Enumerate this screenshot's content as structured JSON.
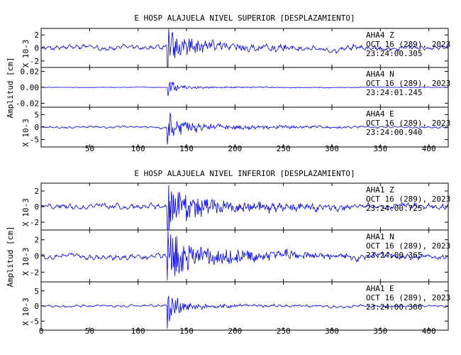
{
  "chart_data": [
    {
      "type": "line",
      "title": "E HOSP ALAJUELA NIVEL SUPERIOR [DESPLAZAMIENTO]",
      "ylabel": "Amplitud [cm]",
      "xlim": [
        0,
        420
      ],
      "x_ticks": [
        "50",
        "100",
        "150",
        "200",
        "250",
        "300",
        "350",
        "400"
      ],
      "trace_color": "#0000ff",
      "panels": [
        {
          "station": "AHA4",
          "component": "Z",
          "date": "OCT 16 (289), 2023",
          "time": "23:24:00.305",
          "scale_label": "X 10-3",
          "ylim": [
            -3,
            3
          ],
          "y_ticks": [
            "2",
            "0",
            "-2"
          ],
          "noise": 0.5,
          "peak": 2.8,
          "onset": 130,
          "decay": 12,
          "tail": 1.0,
          "spike": 3.0
        },
        {
          "station": "AHA4",
          "component": "N",
          "date": "OCT 16 (289), 2023",
          "time": "23:24:01.245",
          "scale_label": "",
          "ylim": [
            -0.025,
            0.025
          ],
          "y_ticks": [
            "0.02",
            "0.00",
            "-0.02"
          ],
          "noise": 0.0004,
          "peak": 0.009,
          "onset": 131,
          "decay": 8,
          "tail": 0.0015,
          "spike": 0.011
        },
        {
          "station": "AHA4",
          "component": "E",
          "date": "OCT 16 (289), 2023",
          "time": "23:24:00.940",
          "scale_label": "X 10-3",
          "ylim": [
            -8,
            8
          ],
          "y_ticks": [
            "5",
            "0",
            "-5"
          ],
          "noise": 0.6,
          "peak": 6.5,
          "onset": 130,
          "decay": 12,
          "tail": 1.5,
          "spike": 7.0
        }
      ]
    },
    {
      "type": "line",
      "title": "E HOSP ALAJUELA NIVEL INFERIOR [DESPLAZAMIENTO]",
      "ylabel": "Amplitud [cm]",
      "xlim": [
        0,
        420
      ],
      "x_ticks": [
        "0",
        "50",
        "100",
        "150",
        "200",
        "250",
        "300",
        "350",
        "400"
      ],
      "trace_color": "#0000ff",
      "panels": [
        {
          "station": "AHA1",
          "component": "Z",
          "date": "OCT 16 (289), 2023",
          "time": "23:24:00.725",
          "scale_label": "X 10-3",
          "ylim": [
            -3,
            3
          ],
          "y_ticks": [
            "2",
            "0",
            "-2"
          ],
          "noise": 0.45,
          "peak": 2.5,
          "onset": 130,
          "decay": 12,
          "tail": 1.4,
          "spike": 2.9
        },
        {
          "station": "AHA1",
          "component": "N",
          "date": "OCT 16 (289), 2023",
          "time": "23:24:00.365",
          "scale_label": "X 10-3",
          "ylim": [
            -3.2,
            3.2
          ],
          "y_ticks": [
            "2",
            "0",
            "-2"
          ],
          "noise": 0.45,
          "peak": 2.6,
          "onset": 130,
          "decay": 12,
          "tail": 1.6,
          "spike": 3.0
        },
        {
          "station": "AHA1",
          "component": "E",
          "date": "OCT 16 (289), 2023",
          "time": "23:24:00.360",
          "scale_label": "X 10-3",
          "ylim": [
            -8,
            8
          ],
          "y_ticks": [
            "5",
            "0",
            "-5"
          ],
          "noise": 0.5,
          "peak": 5.5,
          "onset": 130,
          "decay": 10,
          "tail": 0.8,
          "spike": 7.5
        }
      ]
    }
  ]
}
